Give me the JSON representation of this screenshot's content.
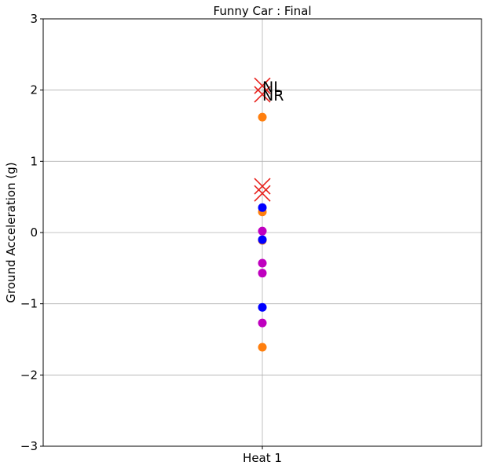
{
  "chart_data": {
    "type": "scatter",
    "title": "Funny Car : Final",
    "xlabel": "",
    "ylabel": "Ground Acceleration (g)",
    "categories": [
      "Heat 1"
    ],
    "ylim": [
      -3,
      3
    ],
    "yticks": [
      -3,
      -2,
      -1,
      0,
      1,
      2,
      3
    ],
    "ytick_labels": [
      "−3",
      "−2",
      "−1",
      "0",
      "1",
      "2",
      "3"
    ],
    "grid": true,
    "series": [
      {
        "color": "#ff7f0e",
        "marker": "circle",
        "points": [
          {
            "x": "Heat 1",
            "y": 1.62
          },
          {
            "x": "Heat 1",
            "y": 0.29
          },
          {
            "x": "Heat 1",
            "y": -0.11
          },
          {
            "x": "Heat 1",
            "y": -1.61
          }
        ]
      },
      {
        "color": "#0000ff",
        "marker": "circle",
        "points": [
          {
            "x": "Heat 1",
            "y": 0.35
          },
          {
            "x": "Heat 1",
            "y": -0.1
          },
          {
            "x": "Heat 1",
            "y": -1.05
          }
        ]
      },
      {
        "color": "#bf00bf",
        "marker": "circle",
        "points": [
          {
            "x": "Heat 1",
            "y": 0.02
          },
          {
            "x": "Heat 1",
            "y": -0.43
          },
          {
            "x": "Heat 1",
            "y": -0.57
          },
          {
            "x": "Heat 1",
            "y": -1.27
          }
        ]
      },
      {
        "color": "#e8211c",
        "marker": "x",
        "points": [
          {
            "x": "Heat 1",
            "y": 2.06,
            "label": "NL"
          },
          {
            "x": "Heat 1",
            "y": 1.94,
            "label": "NR"
          },
          {
            "x": "Heat 1",
            "y": 0.65
          },
          {
            "x": "Heat 1",
            "y": 0.55
          }
        ]
      }
    ]
  }
}
